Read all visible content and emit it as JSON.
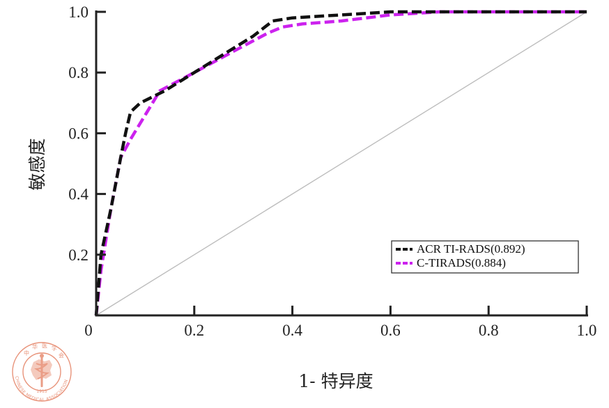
{
  "chart_data": {
    "type": "line",
    "title": "",
    "xlabel": "1- 特异度",
    "ylabel": "敏感度",
    "xlim": [
      0,
      1.0
    ],
    "ylim": [
      0,
      1.0
    ],
    "x_tick_labels": [
      "0",
      "0.2",
      "0.4",
      "0.6",
      "0.8",
      "1.0"
    ],
    "x_tick_values": [
      0,
      0.2,
      0.4,
      0.6,
      0.8,
      1.0
    ],
    "y_tick_labels": [
      "0.2",
      "0.4",
      "0.6",
      "0.8",
      "1.0"
    ],
    "y_tick_values": [
      0.2,
      0.4,
      0.6,
      0.8,
      1.0
    ],
    "grid": false,
    "legend_position": "lower-right",
    "reference_line": {
      "x": [
        0,
        1.0
      ],
      "y": [
        0,
        1.0
      ],
      "color": "#bdbdbd"
    },
    "series": [
      {
        "name": "ACR TI-RADS(0.892)",
        "color": "#111111",
        "style": "dashed",
        "x": [
          0,
          0.01,
          0.03,
          0.05,
          0.06,
          0.07,
          0.09,
          0.14,
          0.2,
          0.26,
          0.32,
          0.36,
          0.4,
          0.5,
          0.6,
          0.7,
          0.8,
          0.9,
          1.0
        ],
        "y": [
          0,
          0.2,
          0.35,
          0.52,
          0.6,
          0.67,
          0.7,
          0.74,
          0.8,
          0.86,
          0.92,
          0.97,
          0.98,
          0.99,
          1.0,
          1.0,
          1.0,
          1.0,
          1.0
        ]
      },
      {
        "name": "C-TIRADS(0.884)",
        "color": "#cc22ee",
        "style": "dashed",
        "x": [
          0,
          0.01,
          0.03,
          0.05,
          0.07,
          0.1,
          0.13,
          0.2,
          0.28,
          0.35,
          0.38,
          0.42,
          0.5,
          0.6,
          0.7,
          0.8,
          0.9,
          1.0
        ],
        "y": [
          0,
          0.15,
          0.35,
          0.52,
          0.58,
          0.66,
          0.74,
          0.8,
          0.87,
          0.93,
          0.95,
          0.96,
          0.97,
          0.99,
          1.0,
          1.0,
          1.0,
          1.0
        ]
      }
    ]
  },
  "logo": {
    "chinese_chars": [
      "中",
      "华",
      "医",
      "学",
      "会"
    ],
    "english_text": "CHINESE MEDICAL ASSOCIATION",
    "year": "1915",
    "primary_color": "#e8937a"
  }
}
